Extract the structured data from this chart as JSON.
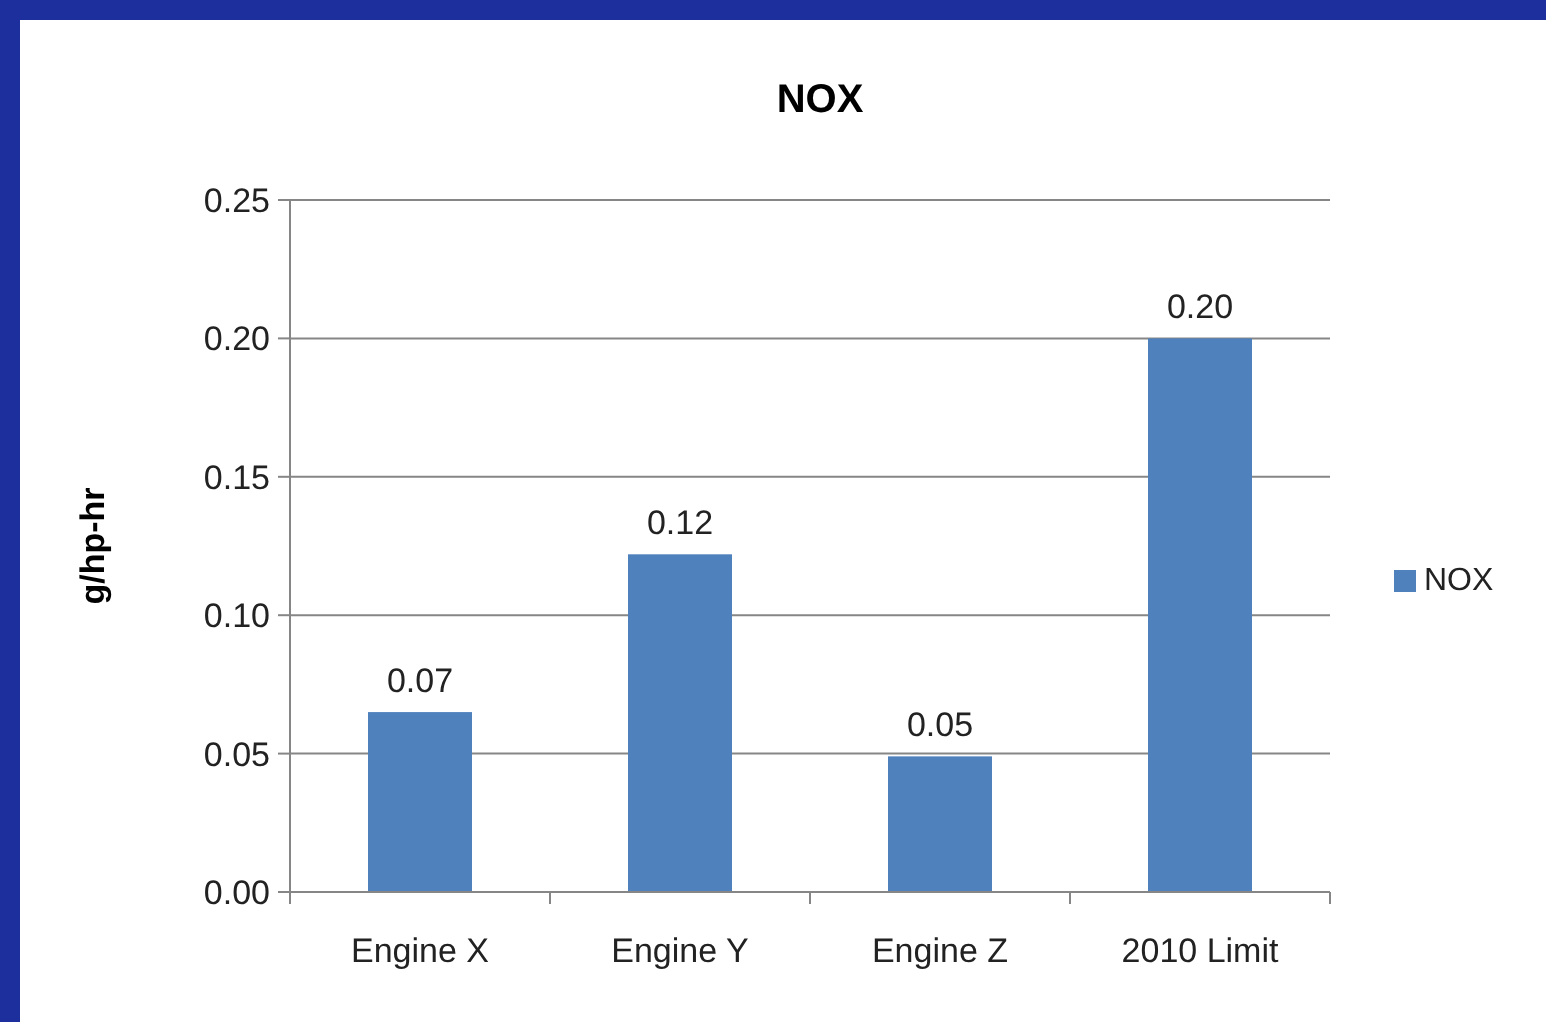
{
  "chart_data": {
    "type": "bar",
    "title": "NOX",
    "ylabel": "g/hp-hr",
    "categories": [
      "Engine X",
      "Engine Y",
      "Engine Z",
      "2010 Limit"
    ],
    "series": [
      {
        "name": "NOX",
        "color": "#4f81bd",
        "values": [
          0.065,
          0.122,
          0.049,
          0.2
        ],
        "value_labels": [
          "0.07",
          "0.12",
          "0.05",
          "0.20"
        ]
      }
    ],
    "ylim": [
      0,
      0.25
    ],
    "yticks": [
      {
        "value": 0,
        "label": "0.00"
      },
      {
        "value": 0.05,
        "label": "0.05"
      },
      {
        "value": 0.1,
        "label": "0.10"
      },
      {
        "value": 0.15,
        "label": "0.15"
      },
      {
        "value": 0.2,
        "label": "0.20"
      },
      {
        "value": 0.25,
        "label": "0.25"
      }
    ],
    "grid": "y",
    "legend": "right"
  }
}
